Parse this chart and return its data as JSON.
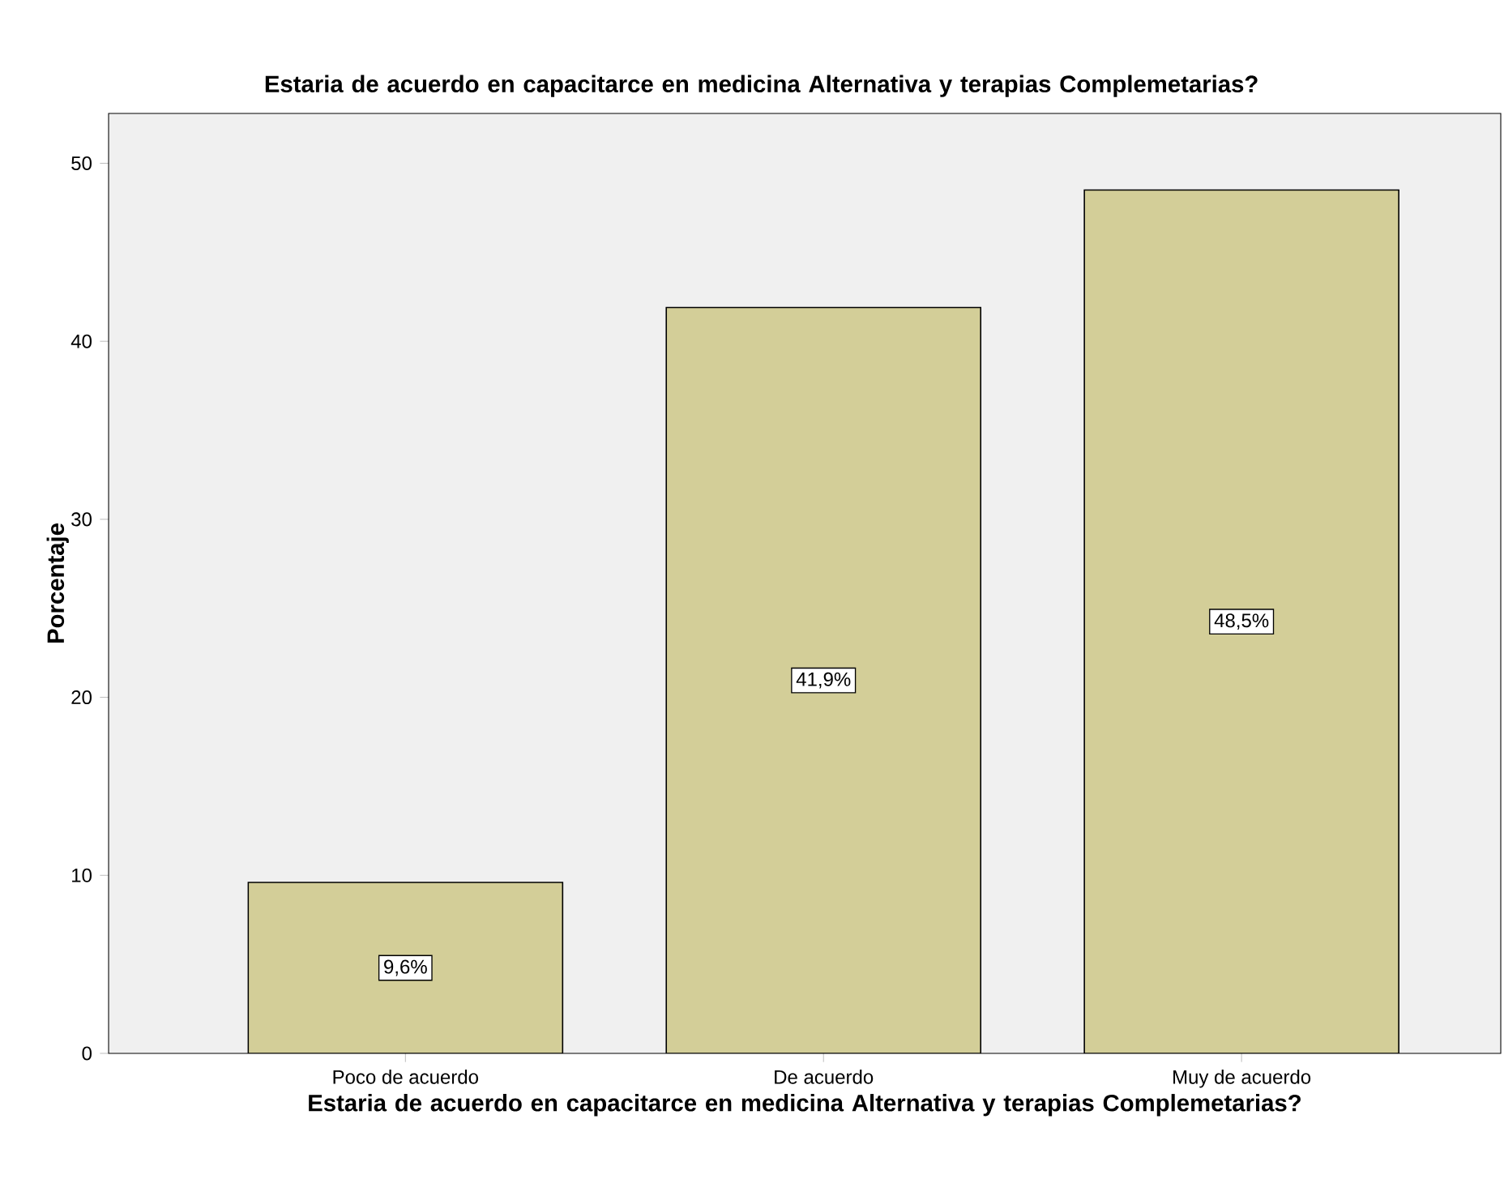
{
  "chart_data": {
    "type": "bar",
    "title": "Estaria de acuerdo en capacitarce en medicina Alternativa y terapias Complemetarias?",
    "xlabel": "Estaria de acuerdo en capacitarce en medicina Alternativa y terapias Complemetarias?",
    "ylabel": "Porcentaje",
    "categories": [
      "Poco de acuerdo",
      "De acuerdo",
      "Muy de acuerdo"
    ],
    "values": [
      9.6,
      41.9,
      48.5
    ],
    "value_labels": [
      "9,6%",
      "41,9%",
      "48,5%"
    ],
    "color": "#d3ce98",
    "ylim": [
      0,
      52.8
    ],
    "yticks": [
      0,
      10,
      20,
      30,
      40,
      50
    ]
  }
}
